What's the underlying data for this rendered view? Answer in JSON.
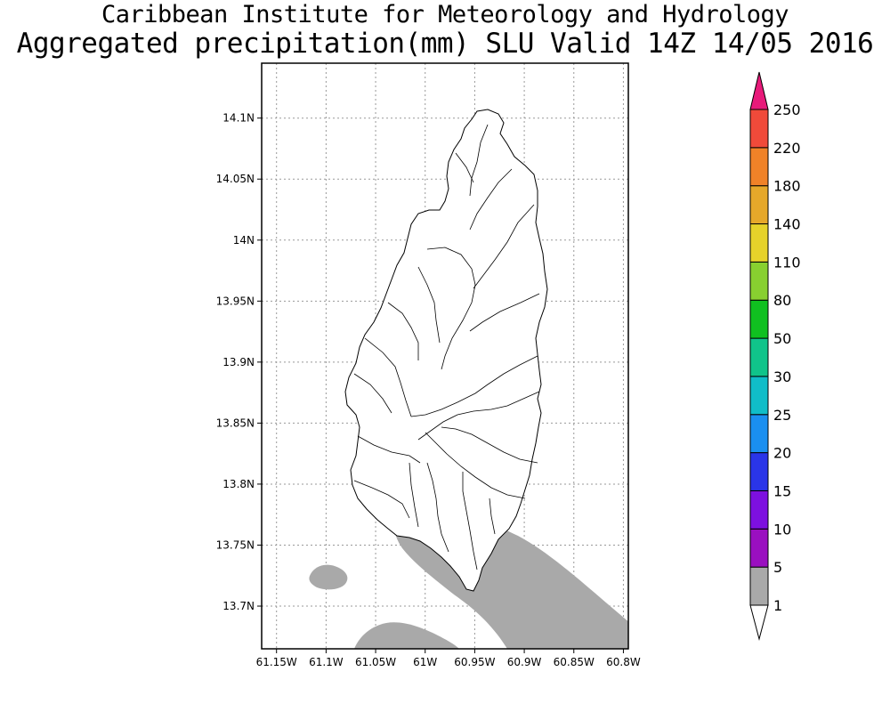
{
  "title": {
    "line1": "Caribbean Institute for Meteorology and Hydrology",
    "line2": "Aggregated precipitation(mm) SLU Valid 14Z 14/05 2016"
  },
  "map": {
    "lon_range": [
      -61.165,
      -60.795
    ],
    "lat_range": [
      13.665,
      14.145
    ],
    "lon_ticks": [
      {
        "value": -61.15,
        "label": "61.15W"
      },
      {
        "value": -61.1,
        "label": "61.1W"
      },
      {
        "value": -61.05,
        "label": "61.05W"
      },
      {
        "value": -61.0,
        "label": "61W"
      },
      {
        "value": -60.95,
        "label": "60.95W"
      },
      {
        "value": -60.9,
        "label": "60.9W"
      },
      {
        "value": -60.85,
        "label": "60.85W"
      },
      {
        "value": -60.8,
        "label": "60.8W"
      }
    ],
    "lat_ticks": [
      {
        "value": 14.1,
        "label": "14.1N"
      },
      {
        "value": 14.05,
        "label": "14.05N"
      },
      {
        "value": 14.0,
        "label": "14N"
      },
      {
        "value": 13.95,
        "label": "13.95N"
      },
      {
        "value": 13.9,
        "label": "13.9N"
      },
      {
        "value": 13.85,
        "label": "13.85N"
      },
      {
        "value": 13.8,
        "label": "13.8N"
      },
      {
        "value": 13.75,
        "label": "13.75N"
      },
      {
        "value": 13.7,
        "label": "13.7N"
      }
    ],
    "grid": true,
    "precip_category": "1-5 mm",
    "precip_color": "#a9a9a9"
  },
  "legend": {
    "placement": "right",
    "levels": [
      "1",
      "5",
      "10",
      "15",
      "20",
      "25",
      "30",
      "50",
      "80",
      "110",
      "140",
      "180",
      "220",
      "250"
    ],
    "colors": [
      "#a9a9a9",
      "#9a0fc0",
      "#7d10e0",
      "#2a35e8",
      "#1a8ff0",
      "#10bdc8",
      "#10c48a",
      "#10c020",
      "#88d030",
      "#e6d22a",
      "#e6a82a",
      "#f08228",
      "#f04a3a",
      "#e81a7a"
    ],
    "low_end_color": "#ffffff",
    "high_end_color": "#e81a7a"
  }
}
